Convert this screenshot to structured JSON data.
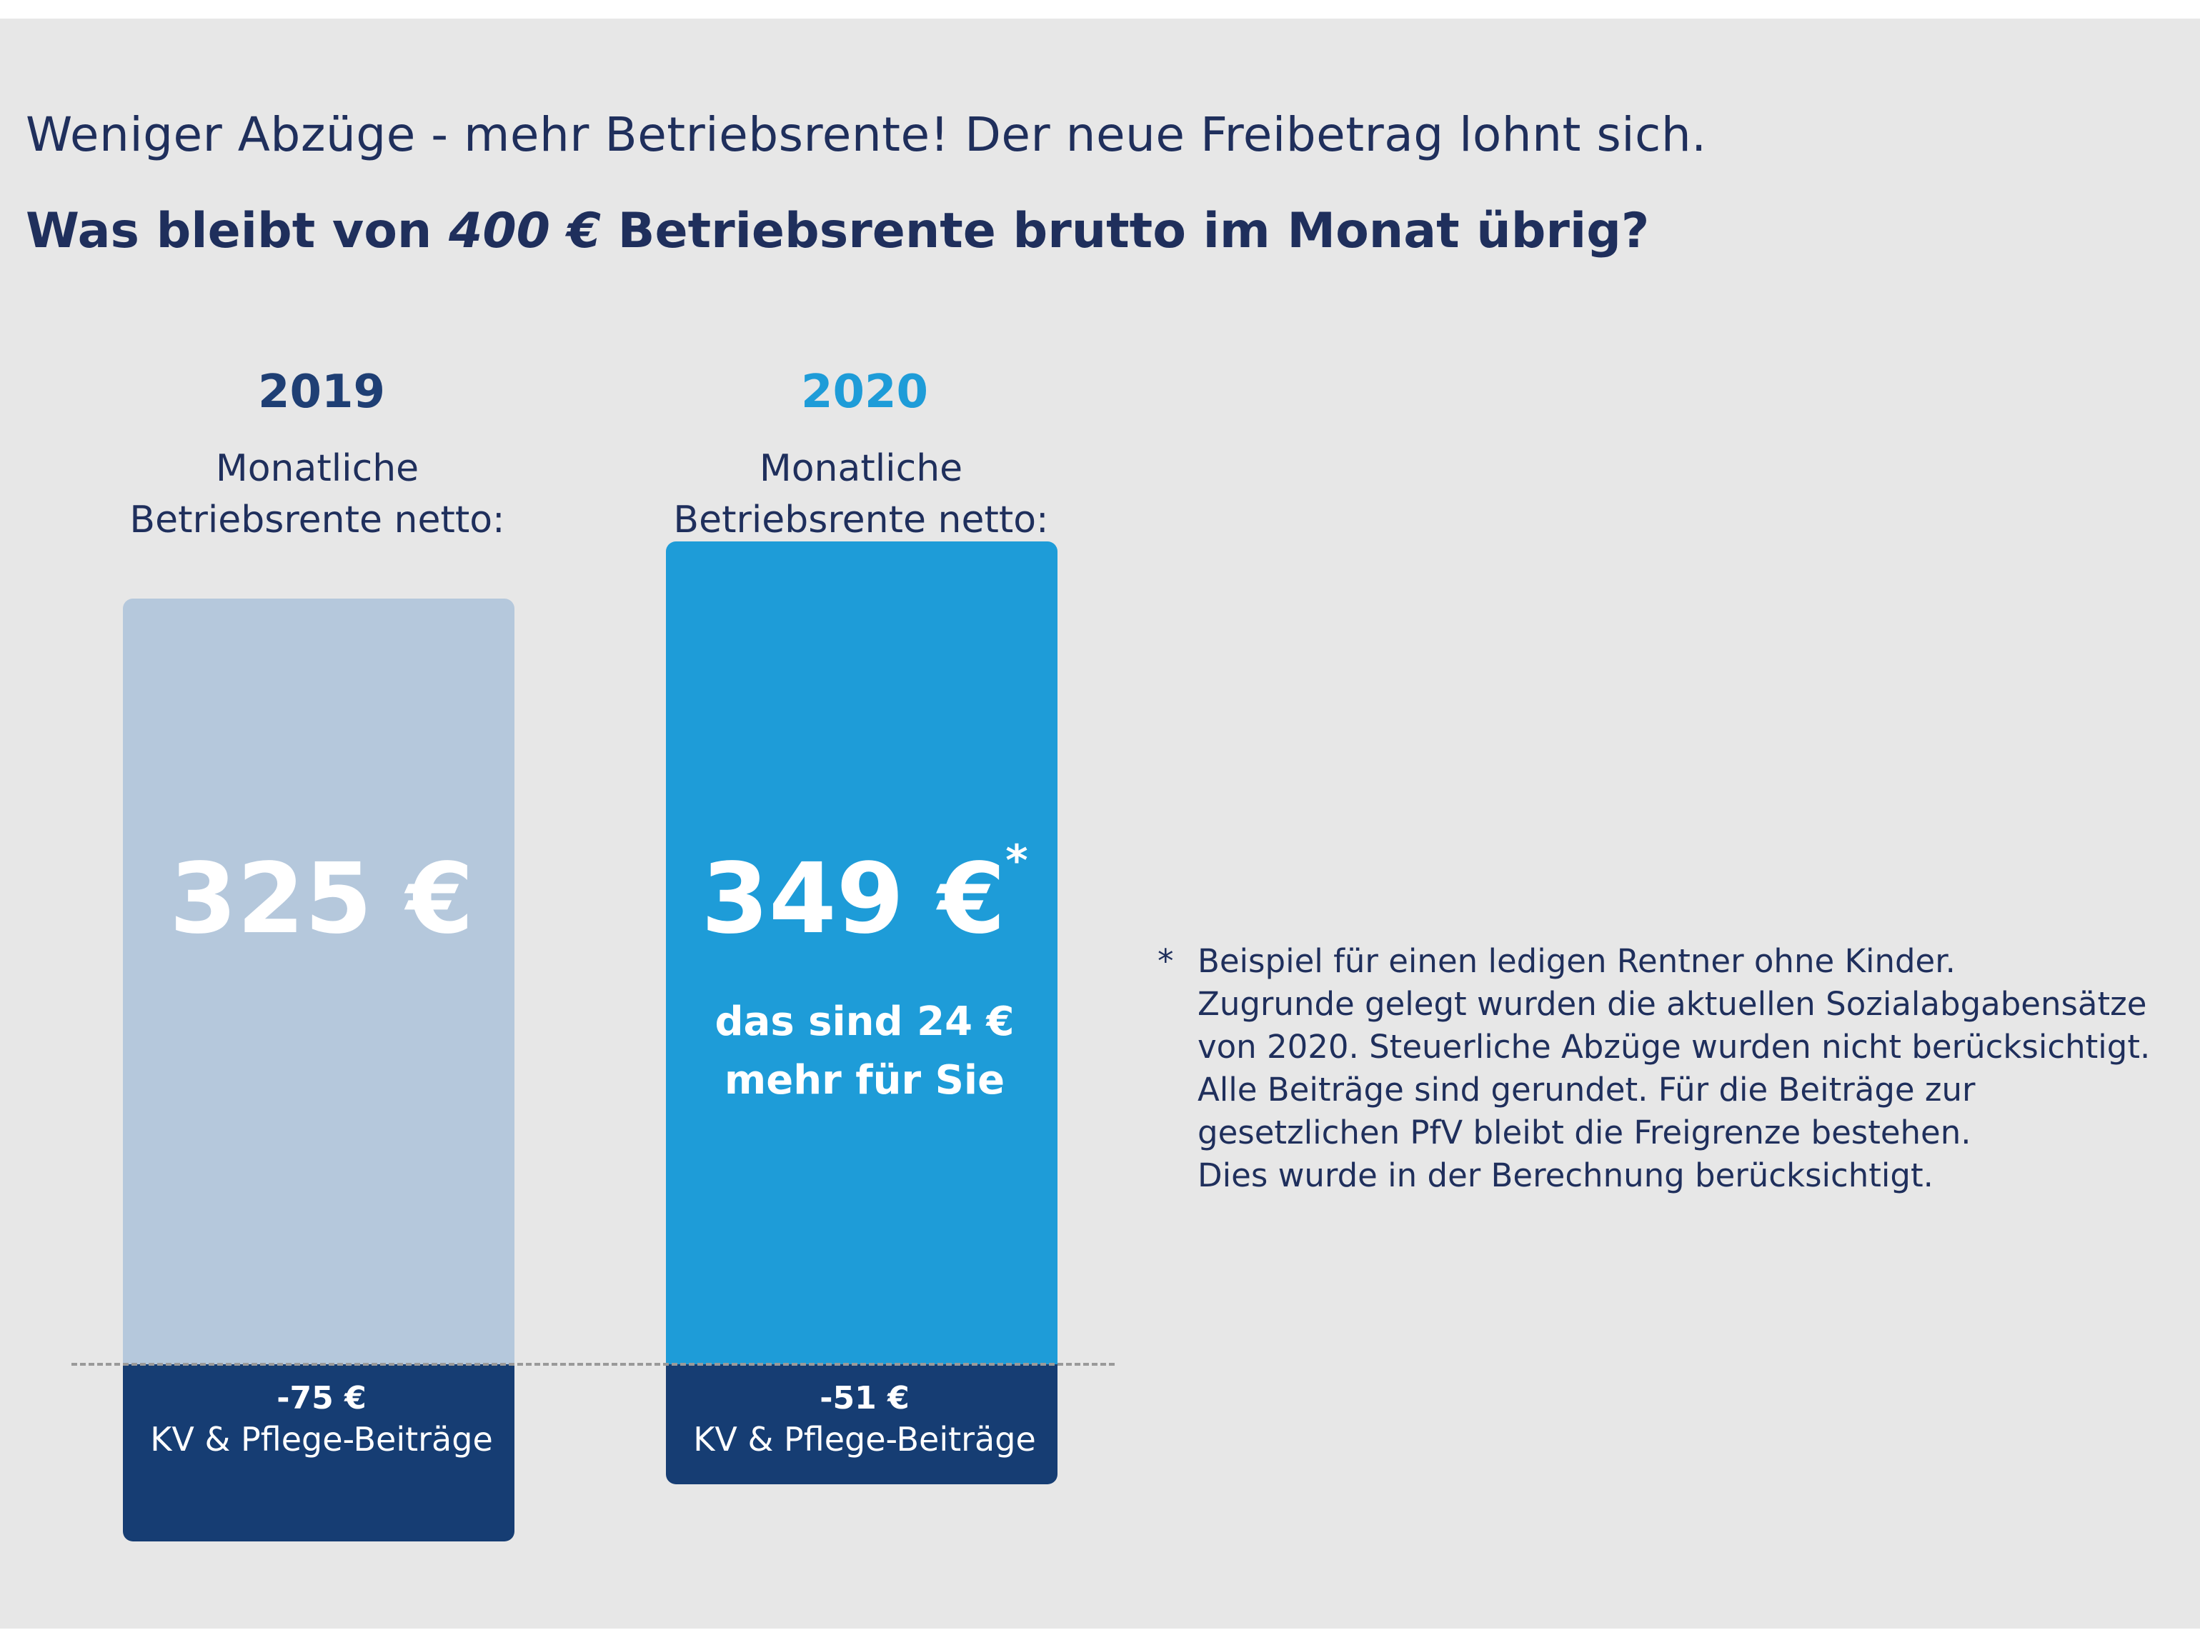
{
  "title": "Weniger Abzüge - mehr Betriebsrente! Der neue Freibetrag lohnt sich.",
  "subtitle": {
    "before": "Was bleibt von ",
    "amount": "400 €",
    "after": " Betriebsrente brutto im Monat übrig?"
  },
  "columns": [
    {
      "year": "2019",
      "label_line1": "Monatliche",
      "label_line2": "Betriebsrente netto:",
      "value_label": "325 €",
      "marker": "",
      "gain_line1": "",
      "gain_line2": "",
      "deduction_value": "-75 €",
      "deduction_label": "KV & Pflege-Beiträge"
    },
    {
      "year": "2020",
      "label_line1": "Monatliche",
      "label_line2": "Betriebsrente netto:",
      "value_label": "349 €",
      "marker": "*",
      "gain_line1": "das sind 24 €",
      "gain_line2": "mehr für Sie",
      "deduction_value": "-51 €",
      "deduction_label": "KV & Pflege-Beiträge"
    }
  ],
  "footnote": {
    "marker": "*",
    "lines": [
      "Beispiel für einen ledigen Rentner ohne Kinder.",
      "Zugrunde gelegt wurden die aktuellen Sozialabgabensätze",
      "von 2020. Steuerliche Abzüge wurden nicht berücksichtigt.",
      "Alle Beiträge sind gerundet. Für die Beiträge zur",
      "gesetzlichen PfV bleibt die Freigrenze bestehen.",
      "Dies wurde in der Berechnung berücksichtigt."
    ]
  },
  "colors": {
    "text_dark": "#1f2f5c",
    "year_2019": "#1f3f74",
    "year_2020": "#1e9cd8",
    "bar_2019": "#b5c8dc",
    "bar_2020": "#1e9cd8",
    "deduction": "#163d73"
  },
  "chart_data": {
    "type": "bar",
    "stacked": true,
    "categories": [
      "2019",
      "2020"
    ],
    "series": [
      {
        "name": "Monatliche Betriebsrente netto",
        "values": [
          325,
          349
        ]
      },
      {
        "name": "KV & Pflege-Beiträge",
        "values": [
          -75,
          -51
        ]
      }
    ],
    "gross": 400,
    "grid": false
  }
}
